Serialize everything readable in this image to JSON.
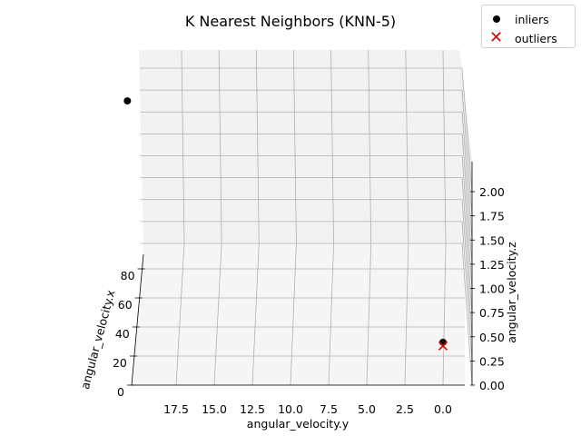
{
  "chart_data": {
    "type": "scatter",
    "title": "K Nearest Neighbors (KNN-5)",
    "axes": {
      "x": {
        "label": "angular_velocity.x",
        "ticks": [
          "0",
          "20",
          "40",
          "60",
          "80"
        ]
      },
      "y": {
        "label": "angular_velocity.y",
        "ticks": [
          "17.5",
          "15.0",
          "12.5",
          "10.0",
          "7.5",
          "5.0",
          "2.5",
          "0.0"
        ]
      },
      "z": {
        "label": "angular_velocity.z",
        "ticks": [
          "0.00",
          "0.25",
          "0.50",
          "0.75",
          "1.00",
          "1.25",
          "1.50",
          "1.75",
          "2.00"
        ]
      }
    },
    "series": [
      {
        "name": "inliers",
        "color": "#000000",
        "marker": "dot",
        "points": [
          {
            "x": 15,
            "y": 0.0,
            "z": 0.25
          },
          {
            "x": 0,
            "y": 19.5,
            "z": 2.4
          }
        ]
      },
      {
        "name": "outliers",
        "color": "#e00000",
        "marker": "x",
        "points": [
          {
            "x": 15,
            "y": 0.0,
            "z": 0.25
          }
        ]
      }
    ],
    "grid": true,
    "legend": "top-right"
  }
}
